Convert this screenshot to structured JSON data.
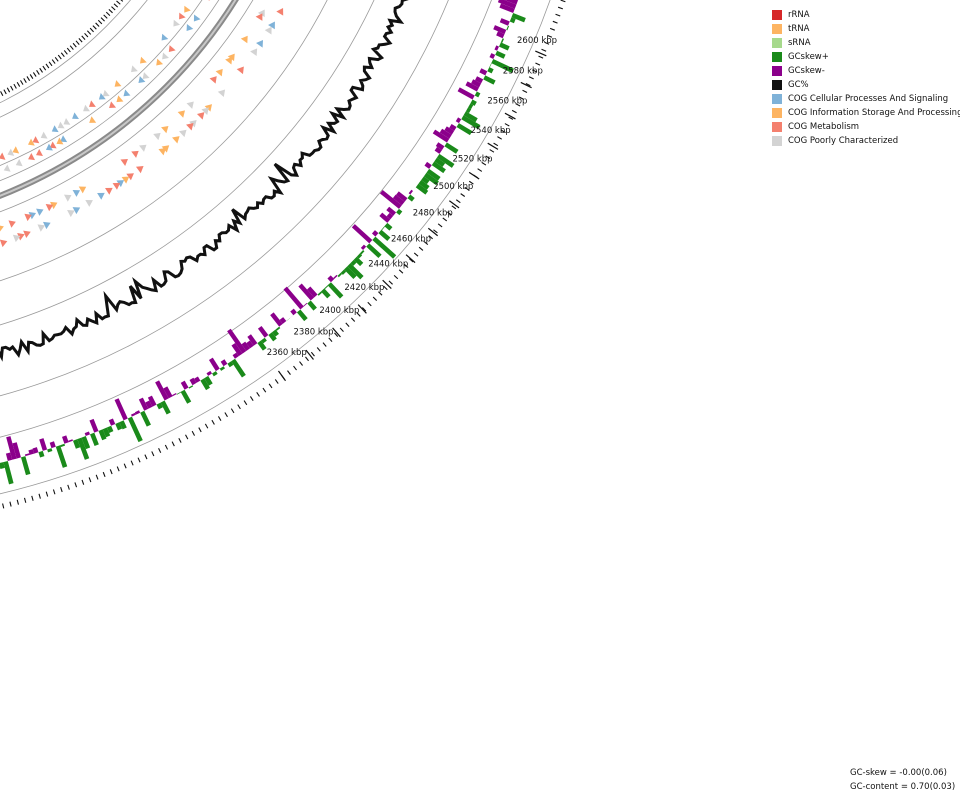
{
  "legend": [
    {
      "label": "rRNA",
      "color": "#d62728"
    },
    {
      "label": "tRNA",
      "color": "#fdb462"
    },
    {
      "label": "sRNA",
      "color": "#a6d98c"
    },
    {
      "label": "GCskew+",
      "color": "#1a8a1a"
    },
    {
      "label": "GCskew-",
      "color": "#8b008b"
    },
    {
      "label": "GC%",
      "color": "#111111"
    },
    {
      "label": "COG Cellular Processes And Signaling",
      "color": "#7fb2d8"
    },
    {
      "label": "COG Information Storage And Processing",
      "color": "#fdb462"
    },
    {
      "label": "COG Metabolism",
      "color": "#f4806e"
    },
    {
      "label": "COG Poorly Characterized",
      "color": "#d3d3d3"
    }
  ],
  "stats": {
    "gc_skew": "GC-skew = -0.00(0.06)",
    "gc_content": "GC-content = 0.70(0.03)"
  },
  "ticks": {
    "labels": [
      "2600 kbp",
      "2580 kbp",
      "2560 kbp",
      "2540 kbp",
      "2520 kbp",
      "2500 kbp",
      "2480 kbp",
      "2460 kbp",
      "2440 kbp",
      "2420 kbp",
      "2400 kbp",
      "2380 kbp",
      "2360 kbp"
    ]
  }
}
